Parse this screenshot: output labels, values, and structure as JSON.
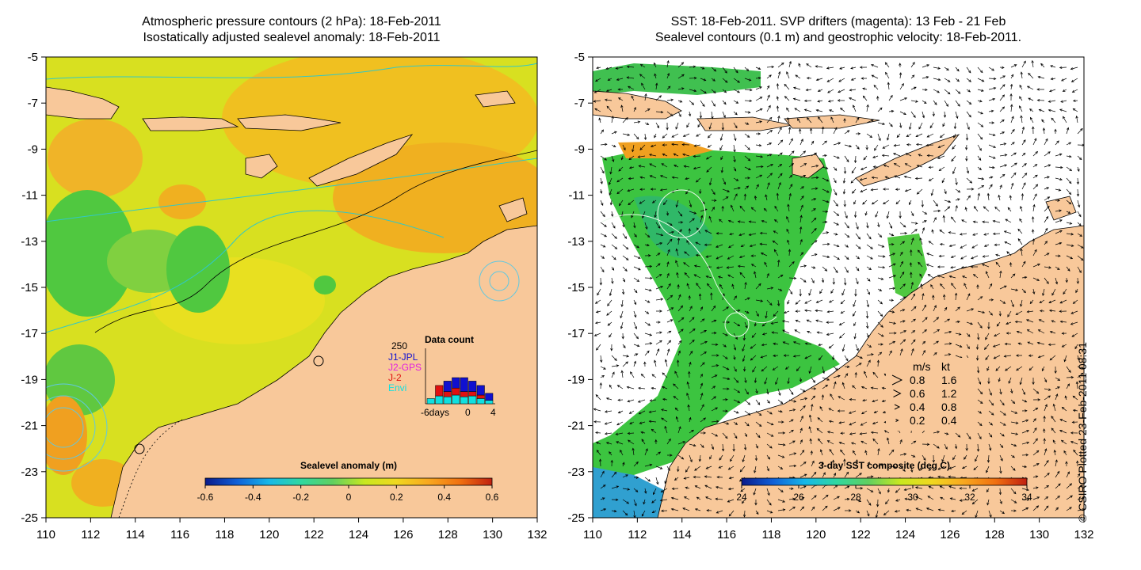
{
  "left_panel": {
    "title_line1": "Atmospheric pressure contours (2 hPa): 18-Feb-2011",
    "title_line2": "Isostatically adjusted sealevel anomaly: 18-Feb-2011",
    "colorbar": {
      "label": "Sealevel anomaly (m)",
      "ticks": [
        "-0.6",
        "-0.4",
        "-0.2",
        "0",
        "0.2",
        "0.4",
        "0.6"
      ],
      "colors": [
        "#0a1a8a",
        "#1060d8",
        "#18b8e8",
        "#30d8a0",
        "#60d060",
        "#c8e820",
        "#f0d820",
        "#f8a820",
        "#f07010",
        "#c02010"
      ]
    },
    "data_count": {
      "title": "Data count",
      "ymax_label": "250",
      "legend": [
        {
          "name": "J1-JPL",
          "color": "#1010d0"
        },
        {
          "name": "J2-GPS",
          "color": "#e020e0"
        },
        {
          "name": "J-2",
          "color": "#e01010"
        },
        {
          "name": "Envi",
          "color": "#10e0e0"
        }
      ],
      "x_labels": [
        "-6days",
        "0",
        "4"
      ],
      "bars": [
        {
          "cyan": 30,
          "red": 0,
          "blue": 0
        },
        {
          "cyan": 45,
          "red": 60,
          "blue": 0
        },
        {
          "cyan": 40,
          "red": 30,
          "blue": 60
        },
        {
          "cyan": 50,
          "red": 40,
          "blue": 60
        },
        {
          "cyan": 40,
          "red": 30,
          "blue": 80
        },
        {
          "cyan": 45,
          "red": 25,
          "blue": 60
        },
        {
          "cyan": 30,
          "red": 20,
          "blue": 55
        },
        {
          "cyan": 20,
          "red": 0,
          "blue": 40
        }
      ]
    }
  },
  "right_panel": {
    "title_line1": "SST: 18-Feb-2011. SVP drifters (magenta): 13 Feb - 21 Feb",
    "title_line2": "Sealevel contours (0.1 m) and geostrophic velocity: 18-Feb-2011.",
    "colorbar": {
      "label": "3-day SST composite (deg C)",
      "ticks": [
        "24",
        "26",
        "28",
        "30",
        "32",
        "34"
      ],
      "colors": [
        "#0a1a8a",
        "#1060d8",
        "#18b8e8",
        "#30d8a0",
        "#60d060",
        "#c8e820",
        "#f0d820",
        "#f8a820",
        "#f07010",
        "#c02010"
      ]
    },
    "speed_legend": {
      "header_ms": "m/s",
      "header_kt": "kt",
      "rows": [
        {
          "ms": "0.8",
          "kt": "1.6"
        },
        {
          "ms": "0.6",
          "kt": "1.2"
        },
        {
          "ms": "0.4",
          "kt": "0.8"
        },
        {
          "ms": "0.2",
          "kt": "0.4"
        }
      ]
    }
  },
  "axes": {
    "x_ticks": [
      "110",
      "112",
      "114",
      "116",
      "118",
      "120",
      "122",
      "124",
      "126",
      "128",
      "130",
      "132"
    ],
    "y_ticks": [
      "-5",
      "-7",
      "-9",
      "-11",
      "-13",
      "-15",
      "-17",
      "-19",
      "-21",
      "-23",
      "-25"
    ]
  },
  "copyright": "© CSIRO Plotted 23-Feb-2011 08:31",
  "colors": {
    "land": "#f8c89a",
    "ocean_warm": "#f0b020",
    "ocean_mid": "#e0e020",
    "ocean_cool": "#50c840"
  }
}
